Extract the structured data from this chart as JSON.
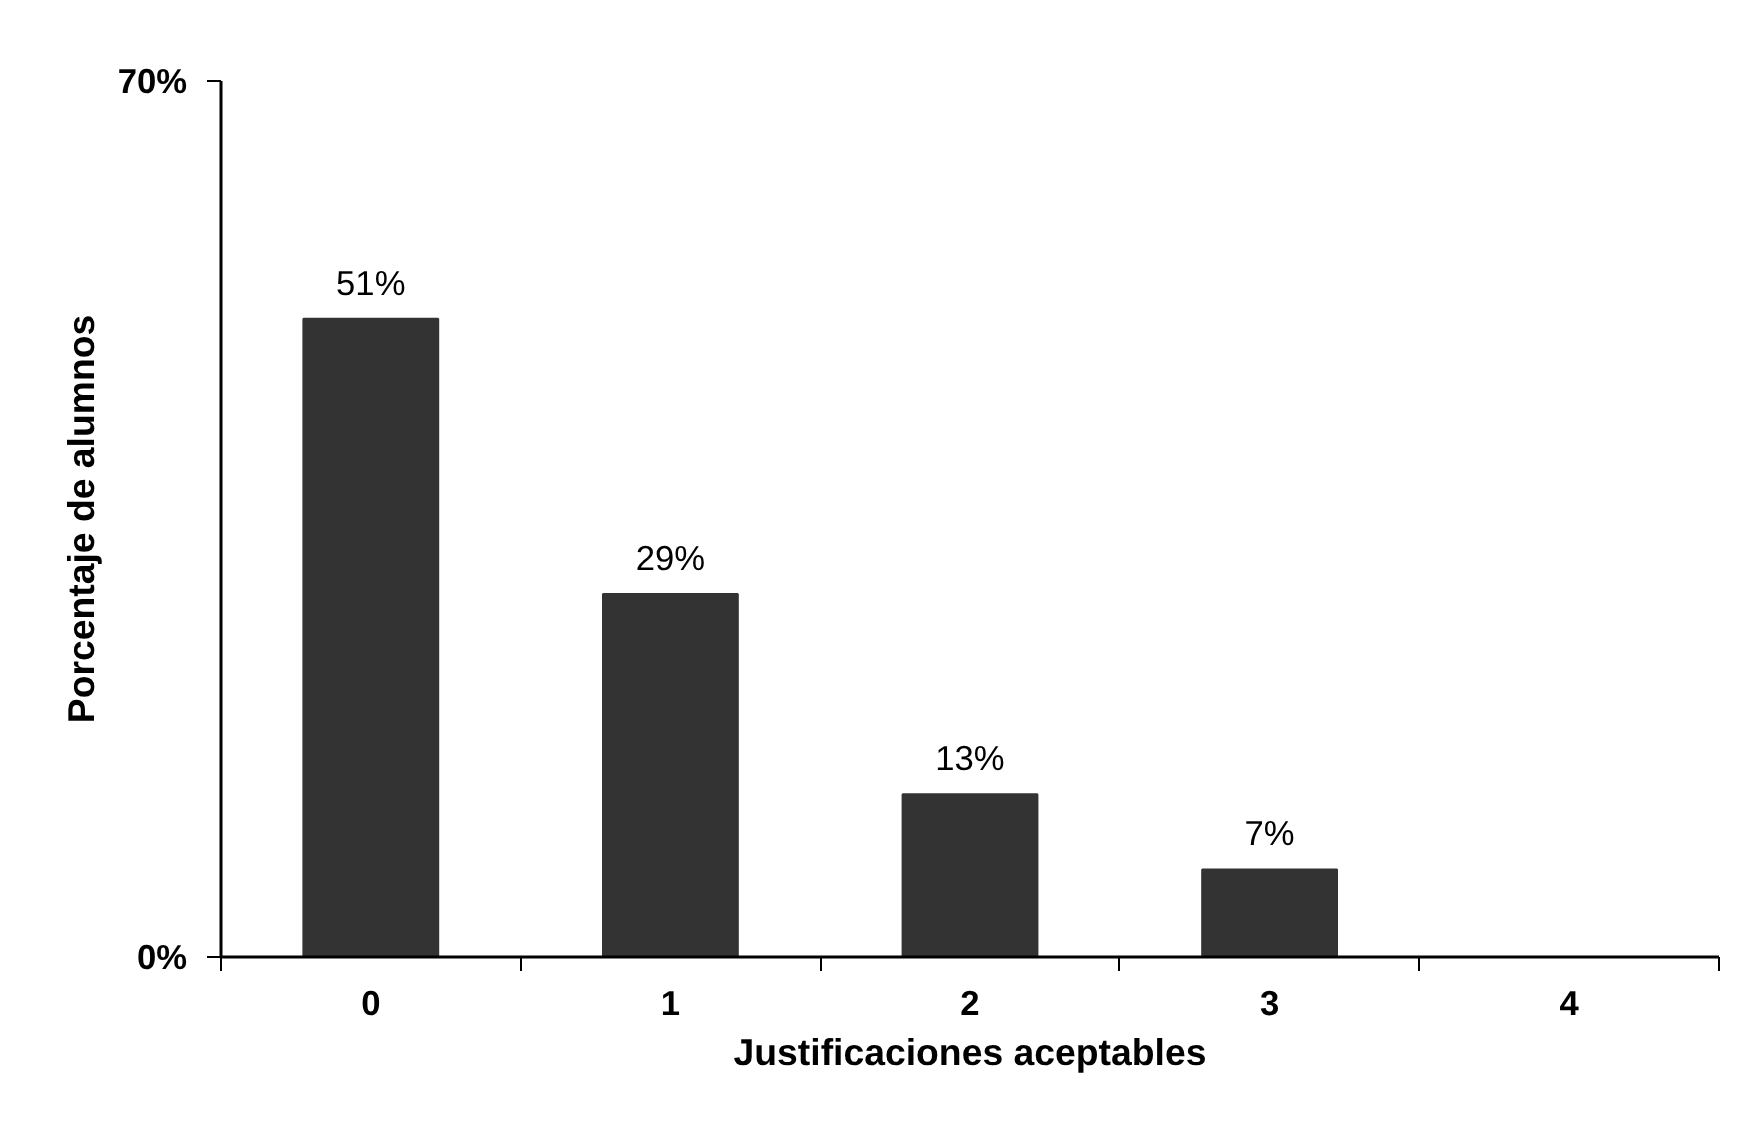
{
  "chart_data": {
    "type": "bar",
    "xlabel": "Justificaciones aceptables",
    "ylabel": "Porcentaje de alumnos",
    "categories": [
      "0",
      "1",
      "2",
      "3",
      "4"
    ],
    "values": [
      51,
      29,
      13,
      7,
      0
    ],
    "value_labels": [
      "51%",
      "29%",
      "13%",
      "7%",
      null
    ],
    "color": "#333333",
    "ylim": [
      0,
      70
    ],
    "yticks": [
      {
        "value": 0,
        "label": "0%"
      },
      {
        "value": 70,
        "label": "70%"
      }
    ],
    "grid": false
  }
}
